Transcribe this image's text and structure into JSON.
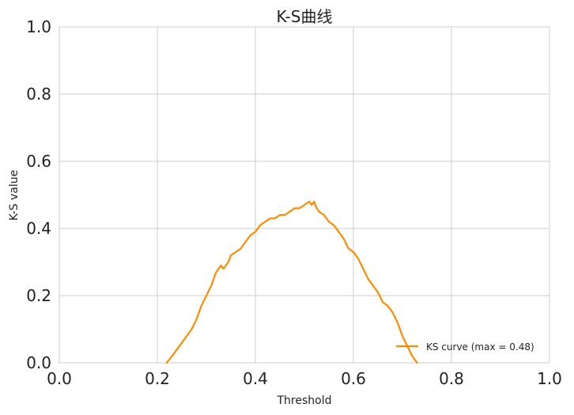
{
  "chart_data": {
    "type": "line",
    "title": "K-S曲线",
    "xlabel": "Threshold",
    "ylabel": "K-S value",
    "xlim": [
      0.0,
      1.0
    ],
    "ylim": [
      0.0,
      1.0
    ],
    "xticks": [
      "0.0",
      "0.2",
      "0.4",
      "0.6",
      "0.8",
      "1.0"
    ],
    "yticks": [
      "0.0",
      "0.2",
      "0.4",
      "0.6",
      "0.8",
      "1.0"
    ],
    "grid": true,
    "legend_position": "bottom-right",
    "series": [
      {
        "name": "KS curve (max = 0.48)",
        "color": "#ff8c00",
        "x": [
          0.219,
          0.23,
          0.245,
          0.26,
          0.27,
          0.28,
          0.29,
          0.3,
          0.31,
          0.32,
          0.33,
          0.335,
          0.345,
          0.35,
          0.36,
          0.37,
          0.38,
          0.39,
          0.4,
          0.41,
          0.42,
          0.43,
          0.44,
          0.45,
          0.46,
          0.47,
          0.48,
          0.49,
          0.5,
          0.51,
          0.515,
          0.52,
          0.525,
          0.53,
          0.54,
          0.55,
          0.56,
          0.57,
          0.58,
          0.59,
          0.6,
          0.61,
          0.62,
          0.63,
          0.64,
          0.65,
          0.66,
          0.67,
          0.68,
          0.69,
          0.7,
          0.71,
          0.72,
          0.73
        ],
        "y": [
          0.0,
          0.02,
          0.05,
          0.08,
          0.1,
          0.13,
          0.17,
          0.2,
          0.23,
          0.27,
          0.29,
          0.28,
          0.3,
          0.32,
          0.33,
          0.34,
          0.36,
          0.38,
          0.39,
          0.41,
          0.42,
          0.43,
          0.43,
          0.44,
          0.44,
          0.45,
          0.46,
          0.46,
          0.47,
          0.48,
          0.47,
          0.48,
          0.46,
          0.45,
          0.44,
          0.42,
          0.41,
          0.39,
          0.37,
          0.34,
          0.33,
          0.31,
          0.28,
          0.25,
          0.23,
          0.21,
          0.18,
          0.17,
          0.15,
          0.12,
          0.08,
          0.05,
          0.02,
          0.0
        ]
      }
    ]
  }
}
